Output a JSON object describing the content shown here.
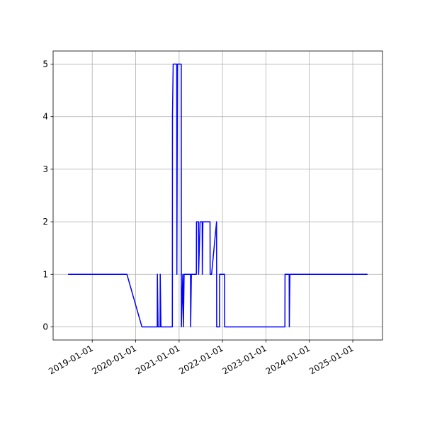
{
  "chart_data": {
    "type": "line",
    "x": [
      "2018-06-12",
      "2019-10-20",
      "2020-02-23",
      "2020-07-01",
      "2020-07-02",
      "2020-07-08",
      "2020-07-25",
      "2020-07-26",
      "2020-08-01",
      "2020-11-05",
      "2020-11-06",
      "2020-11-12",
      "2020-12-12",
      "2020-12-13",
      "2020-12-18",
      "2021-01-19",
      "2021-01-20",
      "2021-02-01",
      "2021-02-06",
      "2021-02-12",
      "2021-04-07",
      "2021-04-08",
      "2021-04-14",
      "2021-05-26",
      "2021-05-27",
      "2021-06-13",
      "2021-06-14",
      "2021-06-26",
      "2021-07-14",
      "2021-07-15",
      "2021-07-20",
      "2021-09-18",
      "2021-09-19",
      "2021-10-01",
      "2021-11-12",
      "2021-11-13",
      "2021-12-07",
      "2021-12-08",
      "2022-01-18",
      "2022-01-19",
      "2023-06-10",
      "2023-06-11",
      "2023-07-16",
      "2023-07-17",
      "2023-07-22",
      "2025-05-05"
    ],
    "series": [
      {
        "color": "#0000ff",
        "values": [
          1,
          1,
          0,
          0,
          1,
          0,
          0,
          1,
          0,
          0,
          4,
          5,
          5,
          1,
          5,
          5,
          0,
          1,
          0,
          1,
          1,
          0,
          1,
          1,
          2,
          2,
          1,
          2,
          2,
          1,
          2,
          2,
          1,
          1,
          2,
          0,
          0,
          1,
          1,
          0,
          0,
          1,
          1,
          0,
          1,
          1
        ]
      }
    ],
    "xlim": [
      "2018-02-06",
      "2025-09-08"
    ],
    "xticks": [
      "2019-01-01",
      "2020-01-01",
      "2021-01-01",
      "2022-01-01",
      "2023-01-01",
      "2024-01-01",
      "2025-01-01"
    ],
    "ylim": [
      -0.25,
      5.25
    ],
    "yticks": [
      0,
      1,
      2,
      3,
      4,
      5
    ],
    "grid": true
  }
}
